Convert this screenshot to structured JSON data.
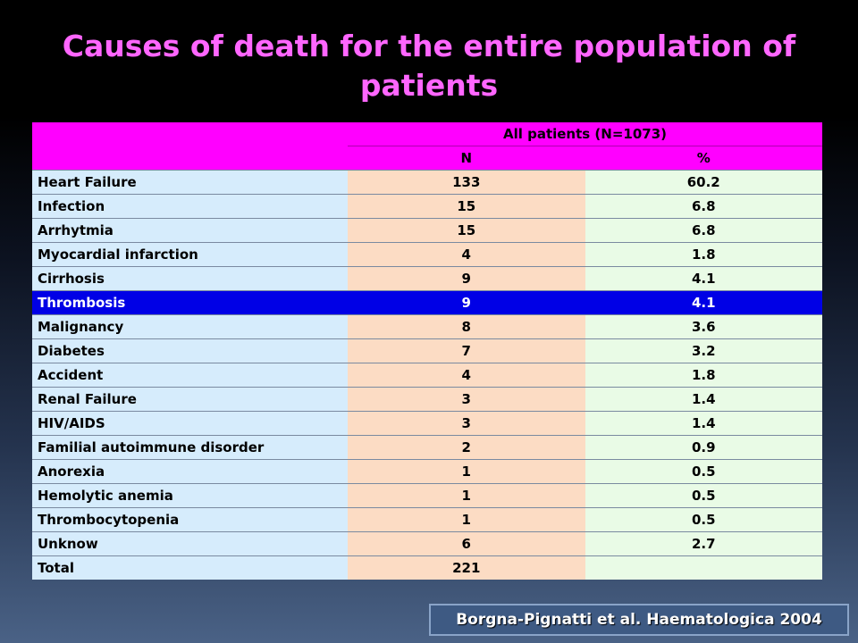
{
  "title": "Causes of death for the entire population of patients",
  "table": {
    "group_header": "All patients (N=1073)",
    "col_n": "N",
    "col_pct": "%",
    "rows": [
      {
        "cause": "Heart Failure",
        "n": "133",
        "pct": "60.2"
      },
      {
        "cause": "Infection",
        "n": "15",
        "pct": "6.8"
      },
      {
        "cause": "Arrhytmia",
        "n": "15",
        "pct": "6.8"
      },
      {
        "cause": "Myocardial infarction",
        "n": "4",
        "pct": "1.8"
      },
      {
        "cause": "Cirrhosis",
        "n": "9",
        "pct": "4.1"
      },
      {
        "cause": "Thrombosis",
        "n": "9",
        "pct": "4.1"
      },
      {
        "cause": "Malignancy",
        "n": "8",
        "pct": "3.6"
      },
      {
        "cause": "Diabetes",
        "n": "7",
        "pct": "3.2"
      },
      {
        "cause": "Accident",
        "n": "4",
        "pct": "1.8"
      },
      {
        "cause": "Renal Failure",
        "n": "3",
        "pct": "1.4"
      },
      {
        "cause": "HIV/AIDS",
        "n": "3",
        "pct": "1.4"
      },
      {
        "cause": "Familial autoimmune disorder",
        "n": "2",
        "pct": "0.9"
      },
      {
        "cause": "Anorexia",
        "n": "1",
        "pct": "0.5"
      },
      {
        "cause": "Hemolytic anemia",
        "n": "1",
        "pct": "0.5"
      },
      {
        "cause": "Thrombocytopenia",
        "n": "1",
        "pct": "0.5"
      },
      {
        "cause": "Unknow",
        "n": "6",
        "pct": "2.7"
      },
      {
        "cause": "Total",
        "n": "221",
        "pct": ""
      }
    ],
    "highlighted_row": "Thrombosis"
  },
  "citation": "Borgna-Pignatti et al. Haematologica 2004",
  "colors": {
    "title": "#ff66ff",
    "header": "#ff00ff",
    "highlight": "#0000e6",
    "cause_col": "#d6ecfc",
    "n_col": "#fcdcc4",
    "pct_col": "#e9fbe6"
  }
}
